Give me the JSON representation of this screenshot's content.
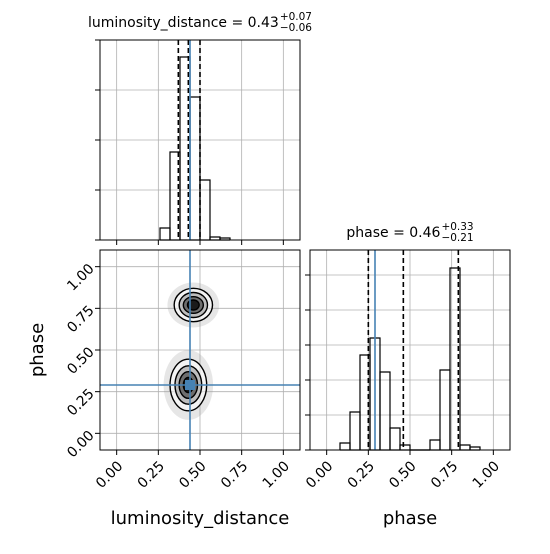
{
  "chart_data": [
    {
      "type": "histogram",
      "title": "luminosity_distance = 0.43",
      "title_sup": "+0.07",
      "title_sub": "−0.06",
      "bins": [
        0.26,
        0.32,
        0.38,
        0.44,
        0.5,
        0.56,
        0.62,
        0.68
      ],
      "counts": [
        12,
        88,
        183,
        143,
        60,
        3,
        2
      ],
      "xlim": [
        -0.1,
        1.1
      ],
      "xticks": [
        0,
        0.25,
        0.5,
        0.75,
        1
      ],
      "ylim": [
        0,
        200
      ],
      "yticks": [
        0,
        50,
        100,
        150,
        200
      ],
      "quantiles": [
        0.37,
        0.43,
        0.5
      ],
      "truth": 0.44,
      "color": "#000000",
      "truth_color": "#4682b4",
      "grid": true
    },
    {
      "type": "contour",
      "xlabel": "luminosity_distance",
      "ylabel": "phase",
      "xlim": [
        -0.1,
        1.1
      ],
      "ylim": [
        -0.1,
        1.1
      ],
      "xticks": [
        {
          "value": 0,
          "label": "0.00"
        },
        {
          "value": 0.25,
          "label": "0.25"
        },
        {
          "value": 0.5,
          "label": "0.50"
        },
        {
          "value": 0.75,
          "label": "0.75"
        },
        {
          "value": 1,
          "label": "1.00"
        }
      ],
      "yticks": [
        {
          "value": 0,
          "label": "0.00"
        },
        {
          "value": 0.25,
          "label": "0.25"
        },
        {
          "value": 0.5,
          "label": "0.50"
        },
        {
          "value": 0.75,
          "label": "0.75"
        },
        {
          "value": 1,
          "label": "1.00"
        }
      ],
      "contours": [
        {
          "cx": 0.46,
          "cy": 0.77,
          "rx": [
            0.115,
            0.085,
            0.06,
            0.035
          ],
          "ry": [
            0.1,
            0.075,
            0.05,
            0.03
          ]
        },
        {
          "cx": 0.43,
          "cy": 0.29,
          "rx": [
            0.11,
            0.08,
            0.055,
            0.03
          ],
          "ry": [
            0.155,
            0.115,
            0.08,
            0.045
          ]
        }
      ],
      "truth": [
        0.44,
        0.29
      ],
      "color": "#000000",
      "truth_color": "#4682b4",
      "grid": true
    },
    {
      "type": "histogram",
      "title": "phase = 0.46",
      "title_sup": "+0.33",
      "title_sub": "−0.21",
      "xlabel": "phase",
      "bins": [
        0.08,
        0.14,
        0.2,
        0.26,
        0.32,
        0.38,
        0.44,
        0.5,
        0.56,
        0.62,
        0.68,
        0.74,
        0.8,
        0.86,
        0.92
      ],
      "counts": [
        7,
        38,
        95,
        112,
        78,
        22,
        5,
        0,
        0,
        10,
        80,
        182,
        5,
        3
      ],
      "xlim": [
        -0.1,
        1.1
      ],
      "xticks": [
        {
          "value": 0,
          "label": "0.00"
        },
        {
          "value": 0.25,
          "label": "0.25"
        },
        {
          "value": 0.5,
          "label": "0.50"
        },
        {
          "value": 0.75,
          "label": "0.75"
        },
        {
          "value": 1,
          "label": "1.00"
        }
      ],
      "ylim": [
        0,
        200
      ],
      "yticks": [
        0,
        35,
        70,
        105,
        140,
        175
      ],
      "quantiles": [
        0.25,
        0.46,
        0.79
      ],
      "truth": 0.29,
      "color": "#000000",
      "truth_color": "#4682b4",
      "grid": true
    }
  ]
}
